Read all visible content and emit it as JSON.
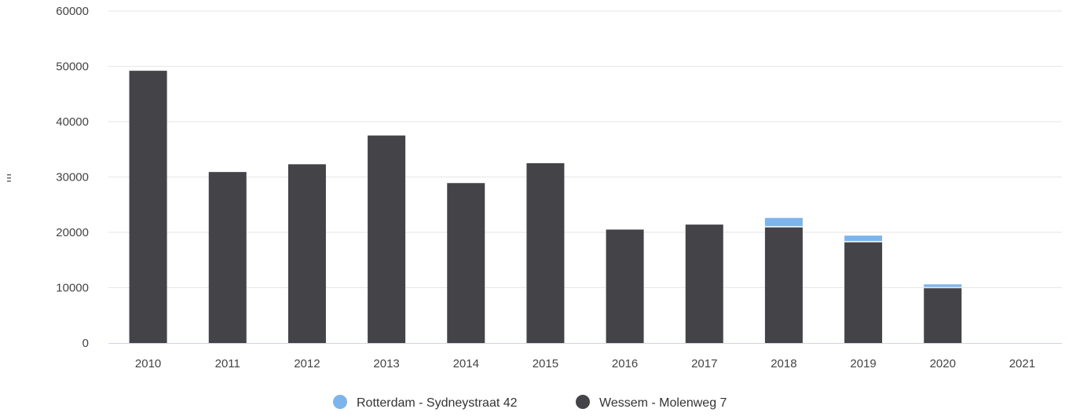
{
  "chart_data": {
    "type": "bar",
    "stacked": true,
    "title": "",
    "xlabel": "",
    "ylabel": "",
    "ylim": [
      0,
      60000
    ],
    "y_ticks": [
      0,
      10000,
      20000,
      30000,
      40000,
      50000,
      60000
    ],
    "grid": "horizontal",
    "legend_position": "bottom-center",
    "categories": [
      "2010",
      "2011",
      "2012",
      "2013",
      "2014",
      "2015",
      "2016",
      "2017",
      "2018",
      "2019",
      "2020",
      "2021"
    ],
    "series": [
      {
        "name": "Wessem - Molenweg 7",
        "color": "#434348",
        "values": [
          49200,
          30900,
          32300,
          37500,
          28900,
          32500,
          20500,
          21400,
          20900,
          18200,
          9900,
          0
        ]
      },
      {
        "name": "Rotterdam - Sydneystraat 42",
        "color": "#7cb5ec",
        "values": [
          0,
          0,
          0,
          0,
          0,
          0,
          0,
          0,
          1700,
          1200,
          700,
          0
        ]
      }
    ],
    "legend_order": [
      1,
      0
    ]
  }
}
